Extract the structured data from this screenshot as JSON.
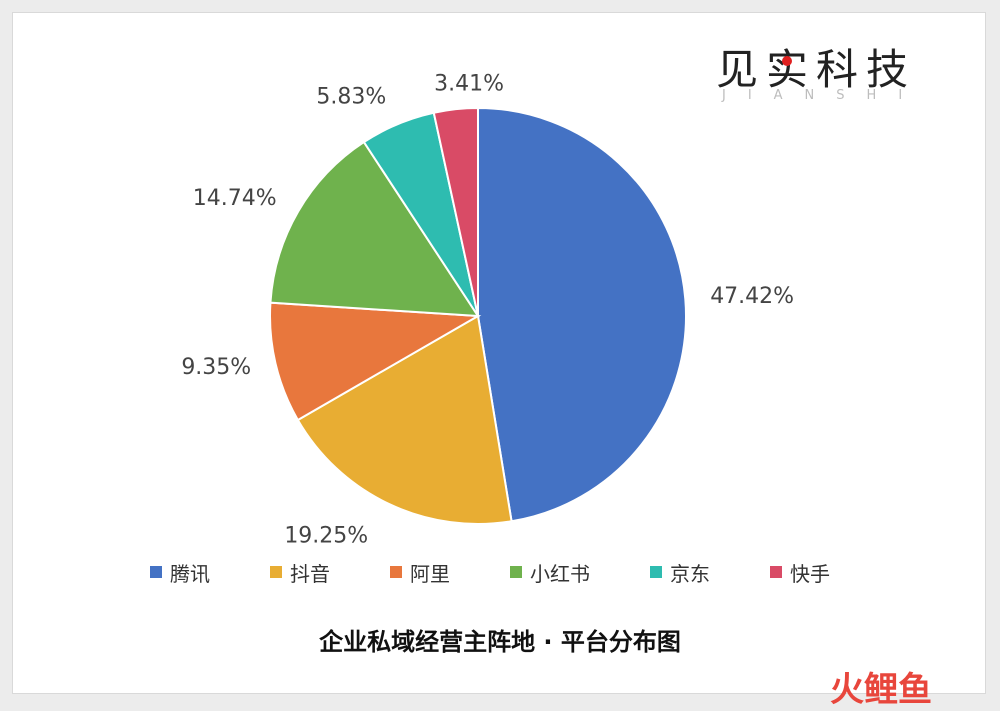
{
  "brand": {
    "title": "见实科技",
    "subtitle": "JIANSHI",
    "dot_color": "#e02020"
  },
  "caption": "企业私域经营主阵地 · 平台分布图",
  "watermark": {
    "text": "火鲤鱼",
    "color": "#e8463c"
  },
  "chart_data": {
    "type": "pie",
    "title": "企业私域经营主阵地 · 平台分布图",
    "legend_position": "bottom",
    "start_angle_deg": 0,
    "direction": "clockwise",
    "slices": [
      {
        "label": "腾讯",
        "value": 47.42,
        "display": "47.42%",
        "color": "#4472c4"
      },
      {
        "label": "抖音",
        "value": 19.25,
        "display": "19.25%",
        "color": "#e8ad33"
      },
      {
        "label": "阿里",
        "value": 9.35,
        "display": "9.35%",
        "color": "#e8773d"
      },
      {
        "label": "小红书",
        "value": 14.74,
        "display": "14.74%",
        "color": "#6fb24d"
      },
      {
        "label": "京东",
        "value": 5.83,
        "display": "5.83%",
        "color": "#2ebcb0"
      },
      {
        "label": "快手",
        "value": 3.41,
        "display": "3.41%",
        "color": "#d94b66"
      }
    ]
  }
}
